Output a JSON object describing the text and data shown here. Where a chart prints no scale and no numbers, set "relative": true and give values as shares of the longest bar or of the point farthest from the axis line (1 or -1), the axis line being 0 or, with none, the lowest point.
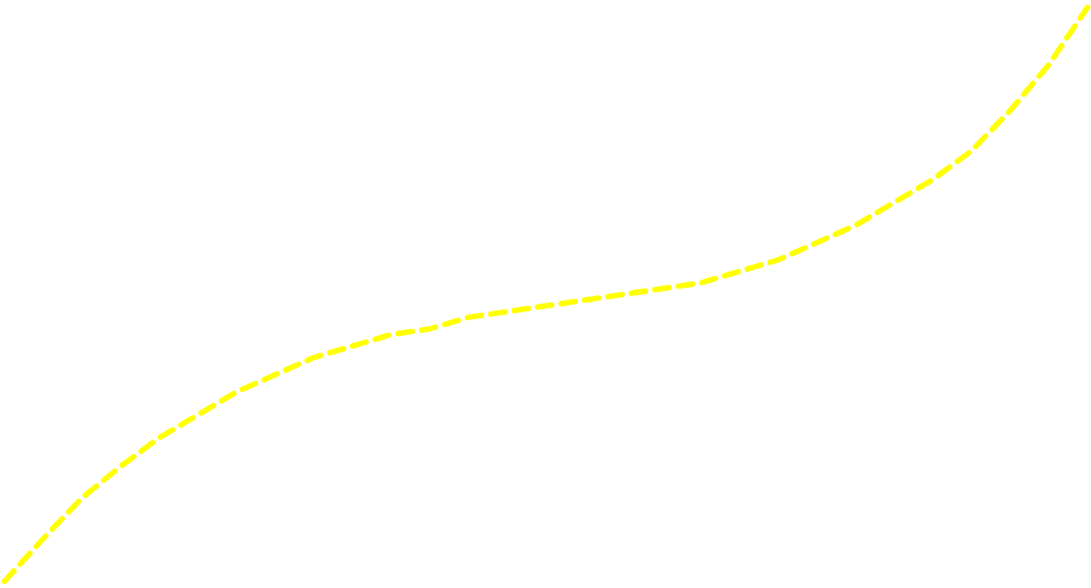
{
  "chart_data": {
    "type": "line",
    "relative": true,
    "line_style": "dashed",
    "grid": false,
    "categories": [
      null,
      null,
      null,
      null,
      null,
      null,
      null,
      null,
      null,
      null,
      null,
      null,
      null,
      null,
      null,
      null,
      null,
      null,
      null,
      null,
      null,
      null,
      null,
      null,
      null,
      null,
      null,
      null,
      null
    ],
    "series": [
      {
        "color": "#ffff00",
        "values": [
          0,
          0.074,
          0.145,
          0.2,
          0.25,
          0.29,
          0.33,
          0.36,
          0.39,
          0.41,
          0.43,
          0.44,
          0.46,
          0.47,
          0.48,
          0.49,
          0.5,
          0.51,
          0.52,
          0.54,
          0.56,
          0.59,
          0.62,
          0.66,
          0.7,
          0.75,
          0.82,
          0.9,
          1.0
        ]
      }
    ]
  }
}
